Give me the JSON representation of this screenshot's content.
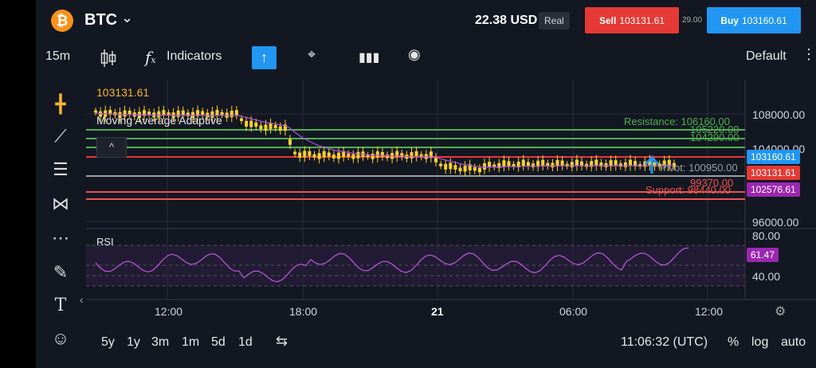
{
  "header": {
    "coin_icon": "bitcoin-icon",
    "coin_glyph": "₿",
    "symbol": "BTC",
    "balance": "22.38 USD",
    "account_type": "Real",
    "sell_label": "Sell",
    "sell_price": "103131.61",
    "spread": "29.00",
    "buy_label": "Buy",
    "buy_price": "103160.61"
  },
  "toolbar": {
    "interval": "15m",
    "indicators_label": "Indicators",
    "template": "Default",
    "icons": [
      "candlestick-icon",
      "function-icon",
      "arrow-up-icon",
      "cursor-icon",
      "bar-chart-icon",
      "eye-icon",
      "more-icon"
    ]
  },
  "left_tools": [
    "crosshair-icon",
    "trendline-icon",
    "horizontal-lines-icon",
    "pattern-icon",
    "fib-icon",
    "brush-icon",
    "text-icon",
    "emoji-icon"
  ],
  "chart": {
    "last_price": "103131.61",
    "indicator": "Moving Average Adaptive",
    "collapse_glyph": "^",
    "price_axis": [
      "108000.00",
      "104000.00",
      "96000.00"
    ],
    "levels": [
      {
        "label": "Resistance: 106160.00",
        "color": "#4caf50"
      },
      {
        "label": "105220.00",
        "color": "#4caf50"
      },
      {
        "label": "104290.00",
        "color": "#4caf50"
      },
      {
        "label": "Pivot: 100950.00",
        "color": "#9e9e9e"
      },
      {
        "label": "99370.00",
        "color": "#ef5350"
      },
      {
        "label": "Support: 98440.00",
        "color": "#ef5350"
      }
    ],
    "price_tags": [
      {
        "label": "103160.61",
        "color": "#2196f3"
      },
      {
        "label": "103131.61",
        "color": "#e53935"
      },
      {
        "label": "102576.61",
        "color": "#9c27b0"
      }
    ],
    "rsi_title": "RSI",
    "rsi_axis": [
      "80.00",
      "40.00"
    ],
    "rsi_value": "61.47",
    "time_axis": [
      "12:00",
      "18:00",
      "21",
      "06:00",
      "12:00"
    ]
  },
  "bottom": {
    "ranges": [
      "5y",
      "1y",
      "3m",
      "1m",
      "5d",
      "1d"
    ],
    "clock": "11:06:32 (UTC)",
    "percent": "%",
    "log": "log",
    "auto": "auto"
  },
  "colors": {
    "bull": "#f7d22a",
    "bear": "#f7d22a",
    "ma": "#b44fe3",
    "rsi": "#c455e6"
  }
}
